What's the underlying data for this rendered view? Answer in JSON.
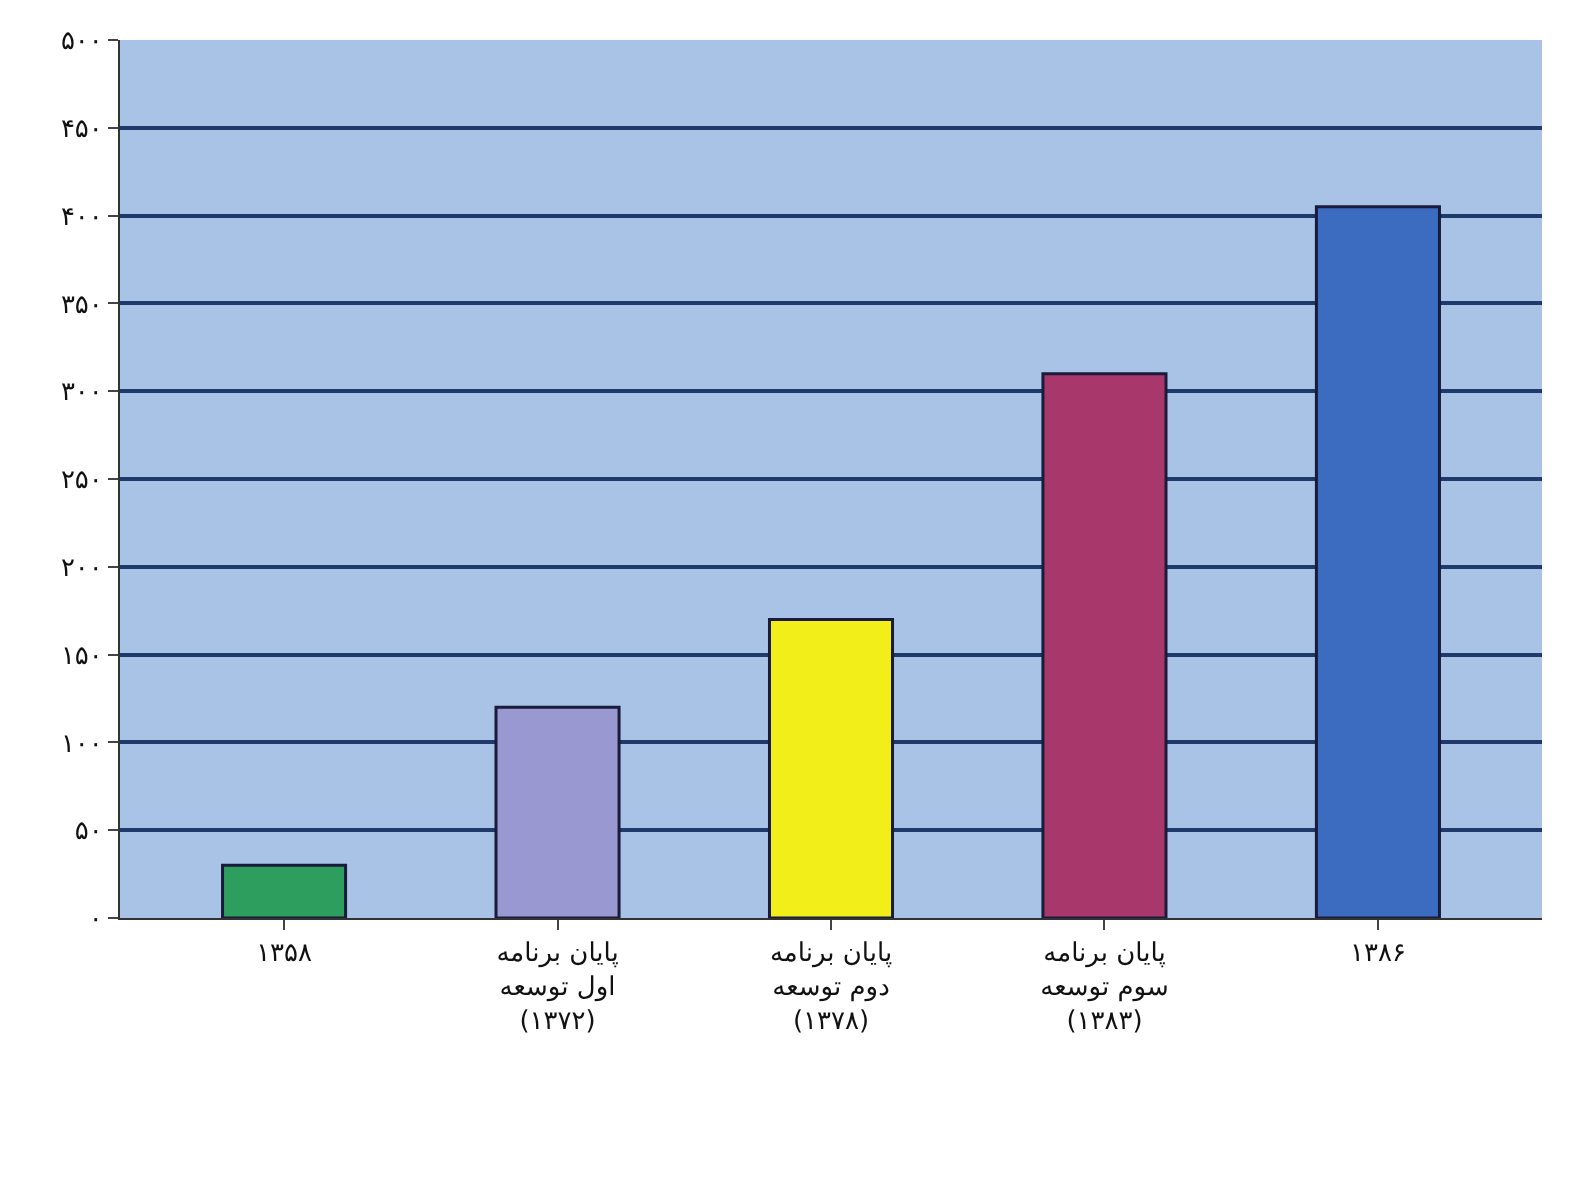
{
  "chart_data": {
    "type": "bar",
    "categories": [
      "۱۳۵۸",
      "پایان برنامه\nاول توسعه\n(۱۳۷۲)",
      "پایان برنامه\nدوم توسعه\n(۱۳۷۸)",
      "پایان برنامه\nسوم توسعه\n(۱۳۸۳)",
      "۱۳۸۶"
    ],
    "values": [
      30,
      120,
      170,
      310,
      405
    ],
    "colors": [
      "#2e9e5e",
      "#9a98d0",
      "#f2ee1a",
      "#a8386c",
      "#3c6cc0"
    ],
    "ylim": [
      0,
      500
    ],
    "yticks": [
      {
        "value": 0,
        "label": "۰"
      },
      {
        "value": 50,
        "label": "۵۰"
      },
      {
        "value": 100,
        "label": "۱۰۰"
      },
      {
        "value": 150,
        "label": "۱۵۰"
      },
      {
        "value": 200,
        "label": "۲۰۰"
      },
      {
        "value": 250,
        "label": "۲۵۰"
      },
      {
        "value": 300,
        "label": "۳۰۰"
      },
      {
        "value": 350,
        "label": "۳۵۰"
      },
      {
        "value": 400,
        "label": "۴۰۰"
      },
      {
        "value": 450,
        "label": "۴۵۰"
      },
      {
        "value": 500,
        "label": "۵۰۰"
      }
    ],
    "grid": "y"
  }
}
